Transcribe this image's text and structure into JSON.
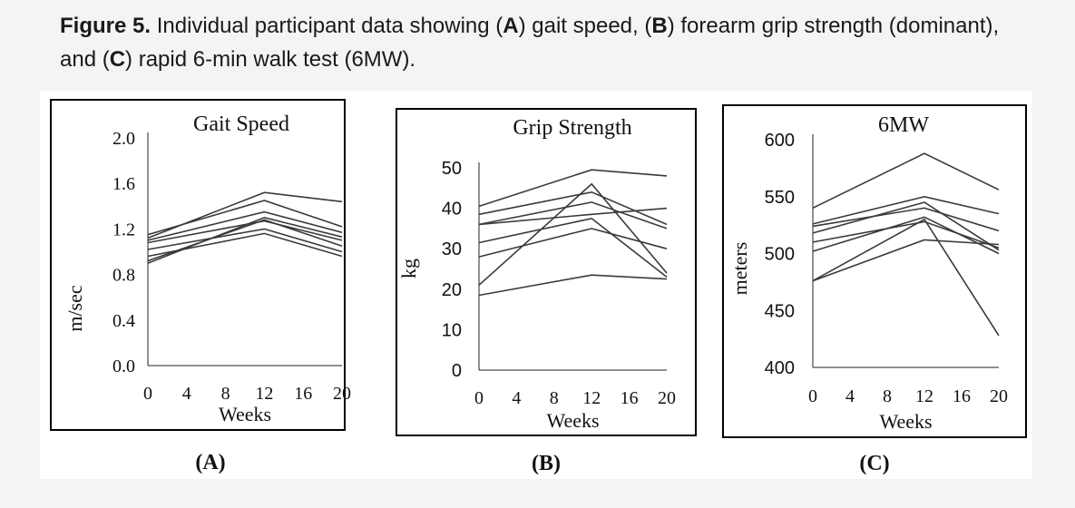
{
  "caption": {
    "prefix": "Figure 5.",
    "t1": " Individual participant data showing (",
    "a": "A",
    "t2": ") gait speed, (",
    "b": "B",
    "t3": ") forearm grip strength (dominant), and (",
    "c": "C",
    "t4": ") rapid 6-min walk test (6MW)."
  },
  "chart_data": [
    {
      "type": "line",
      "panel_label": "(A)",
      "title": "Gait Speed",
      "xlabel": "Weeks",
      "ylabel": "m/sec",
      "x": [
        0,
        12,
        20
      ],
      "xticks": [
        "0",
        "4",
        "8",
        "12",
        "16",
        "20"
      ],
      "xlim": [
        0,
        20
      ],
      "yticks": [
        "0.0",
        "0.4",
        "0.8",
        "1.2",
        "1.6",
        "2.0"
      ],
      "ylim": [
        0,
        2.0
      ],
      "series": [
        {
          "values": [
            1.12,
            1.52,
            1.44
          ]
        },
        {
          "values": [
            1.15,
            1.45,
            1.22
          ]
        },
        {
          "values": [
            1.1,
            1.35,
            1.17
          ]
        },
        {
          "values": [
            1.08,
            1.27,
            1.1
          ]
        },
        {
          "values": [
            1.02,
            1.2,
            1.0
          ]
        },
        {
          "values": [
            0.96,
            1.16,
            0.96
          ]
        },
        {
          "values": [
            0.92,
            1.28,
            1.05
          ]
        },
        {
          "values": [
            0.9,
            1.3,
            1.13
          ]
        }
      ]
    },
    {
      "type": "line",
      "panel_label": "(B)",
      "title": "Grip Strength",
      "xlabel": "Weeks",
      "ylabel": "kg",
      "x": [
        0,
        12,
        20
      ],
      "xticks": [
        "0",
        "4",
        "8",
        "12",
        "16",
        "20"
      ],
      "xlim": [
        0,
        20
      ],
      "yticks": [
        "0",
        "10",
        "20",
        "30",
        "40",
        "50"
      ],
      "ylim": [
        0,
        50
      ],
      "series": [
        {
          "values": [
            40.5,
            49.5,
            48.0
          ]
        },
        {
          "values": [
            38.5,
            44.0,
            36.0
          ]
        },
        {
          "values": [
            36.0,
            41.5,
            35.0
          ]
        },
        {
          "values": [
            36.0,
            38.5,
            40.0
          ]
        },
        {
          "values": [
            31.5,
            37.5,
            23.0
          ]
        },
        {
          "values": [
            28.0,
            35.0,
            30.0
          ]
        },
        {
          "values": [
            21.0,
            46.0,
            24.0
          ]
        },
        {
          "values": [
            18.5,
            23.5,
            22.5
          ]
        }
      ]
    },
    {
      "type": "line",
      "panel_label": "(C)",
      "title": "6MW",
      "xlabel": "Weeks",
      "ylabel": "meters",
      "x": [
        0,
        12,
        20
      ],
      "xticks": [
        "0",
        "4",
        "8",
        "12",
        "16",
        "20"
      ],
      "xlim": [
        0,
        20
      ],
      "yticks": [
        "400",
        "450",
        "500",
        "550",
        "600"
      ],
      "ylim": [
        400,
        600
      ],
      "series": [
        {
          "values": [
            540,
            588,
            556
          ]
        },
        {
          "values": [
            526,
            550,
            535
          ]
        },
        {
          "values": [
            524,
            540,
            520
          ]
        },
        {
          "values": [
            518,
            545,
            503
          ]
        },
        {
          "values": [
            510,
            528,
            505
          ]
        },
        {
          "values": [
            502,
            532,
            500
          ]
        },
        {
          "values": [
            476,
            512,
            508
          ]
        },
        {
          "values": [
            476,
            530,
            428
          ]
        }
      ]
    }
  ]
}
